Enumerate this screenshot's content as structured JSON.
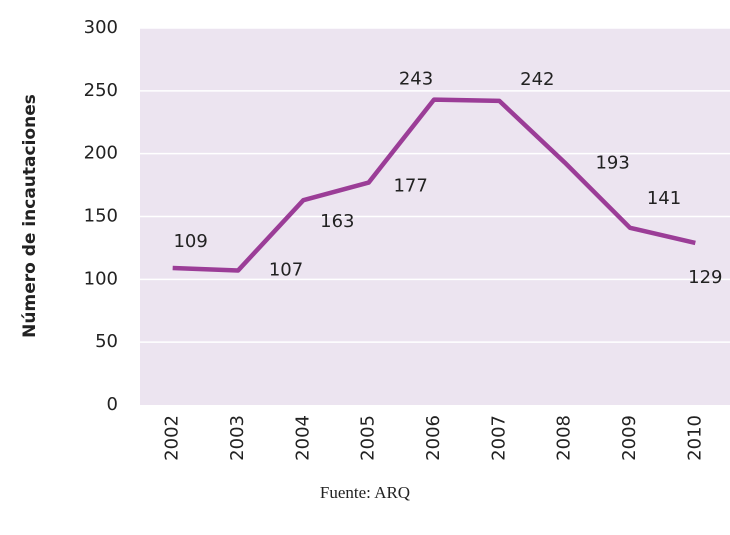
{
  "chart_data": {
    "type": "line",
    "y_label": "Número de incautaciones",
    "source": "Fuente: ARQ",
    "categories": [
      "2002",
      "2003",
      "2004",
      "2005",
      "2006",
      "2007",
      "2008",
      "2009",
      "2010"
    ],
    "series": [
      {
        "name": null,
        "color": "#9b3d97",
        "values": [
          109,
          107,
          163,
          177,
          243,
          242,
          193,
          141,
          129
        ]
      }
    ],
    "ylim": [
      0,
      300
    ],
    "yticks": [
      0,
      50,
      100,
      150,
      200,
      250,
      300
    ],
    "grid": true
  }
}
